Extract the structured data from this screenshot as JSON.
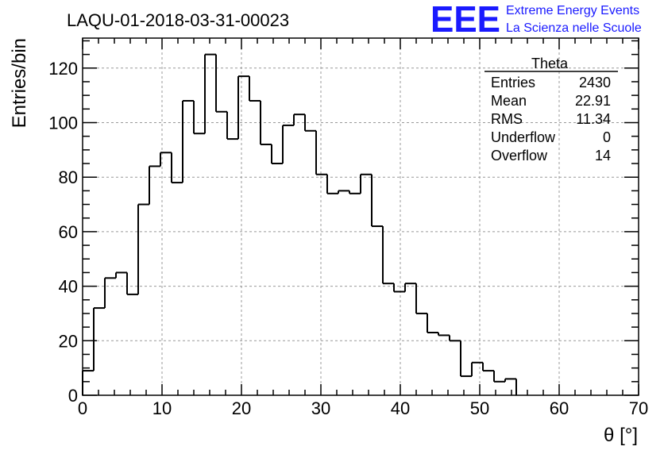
{
  "chart_data": {
    "type": "bar",
    "title": "LAQU-01-2018-03-31-00023",
    "xlabel": "θ [°]",
    "ylabel": "Entries/bin",
    "xlim": [
      0,
      70
    ],
    "ylim": [
      0,
      131
    ],
    "bin_width": 1.4,
    "x_ticks": [
      0,
      10,
      20,
      30,
      40,
      50,
      60,
      70
    ],
    "y_ticks": [
      0,
      20,
      40,
      60,
      80,
      100,
      120
    ],
    "grid": true,
    "legend": "none",
    "series": [
      {
        "name": "Theta",
        "values": [
          9,
          32,
          43,
          45,
          37,
          70,
          84,
          89,
          78,
          108,
          96,
          125,
          104,
          94,
          117,
          108,
          92,
          85,
          99,
          103,
          97,
          81,
          74,
          75,
          74,
          81,
          62,
          41,
          38,
          41,
          30,
          23,
          22,
          20,
          7,
          12,
          9,
          5,
          6
        ]
      }
    ],
    "stats_box": {
      "title": "Theta",
      "rows": [
        {
          "label": "Entries",
          "value": "2430"
        },
        {
          "label": "Mean",
          "value": "22.91"
        },
        {
          "label": "RMS",
          "value": "11.34"
        },
        {
          "label": "Underflow",
          "value": "0"
        },
        {
          "label": "Overflow",
          "value": "14"
        }
      ]
    }
  },
  "logo": {
    "mark": "EEE",
    "line1": "Extreme Energy Events",
    "line2": "La Scienza nelle Scuole",
    "color": "#1a1aff"
  },
  "colors": {
    "line": "#000000",
    "grid": "#999999",
    "background": "#ffffff"
  }
}
